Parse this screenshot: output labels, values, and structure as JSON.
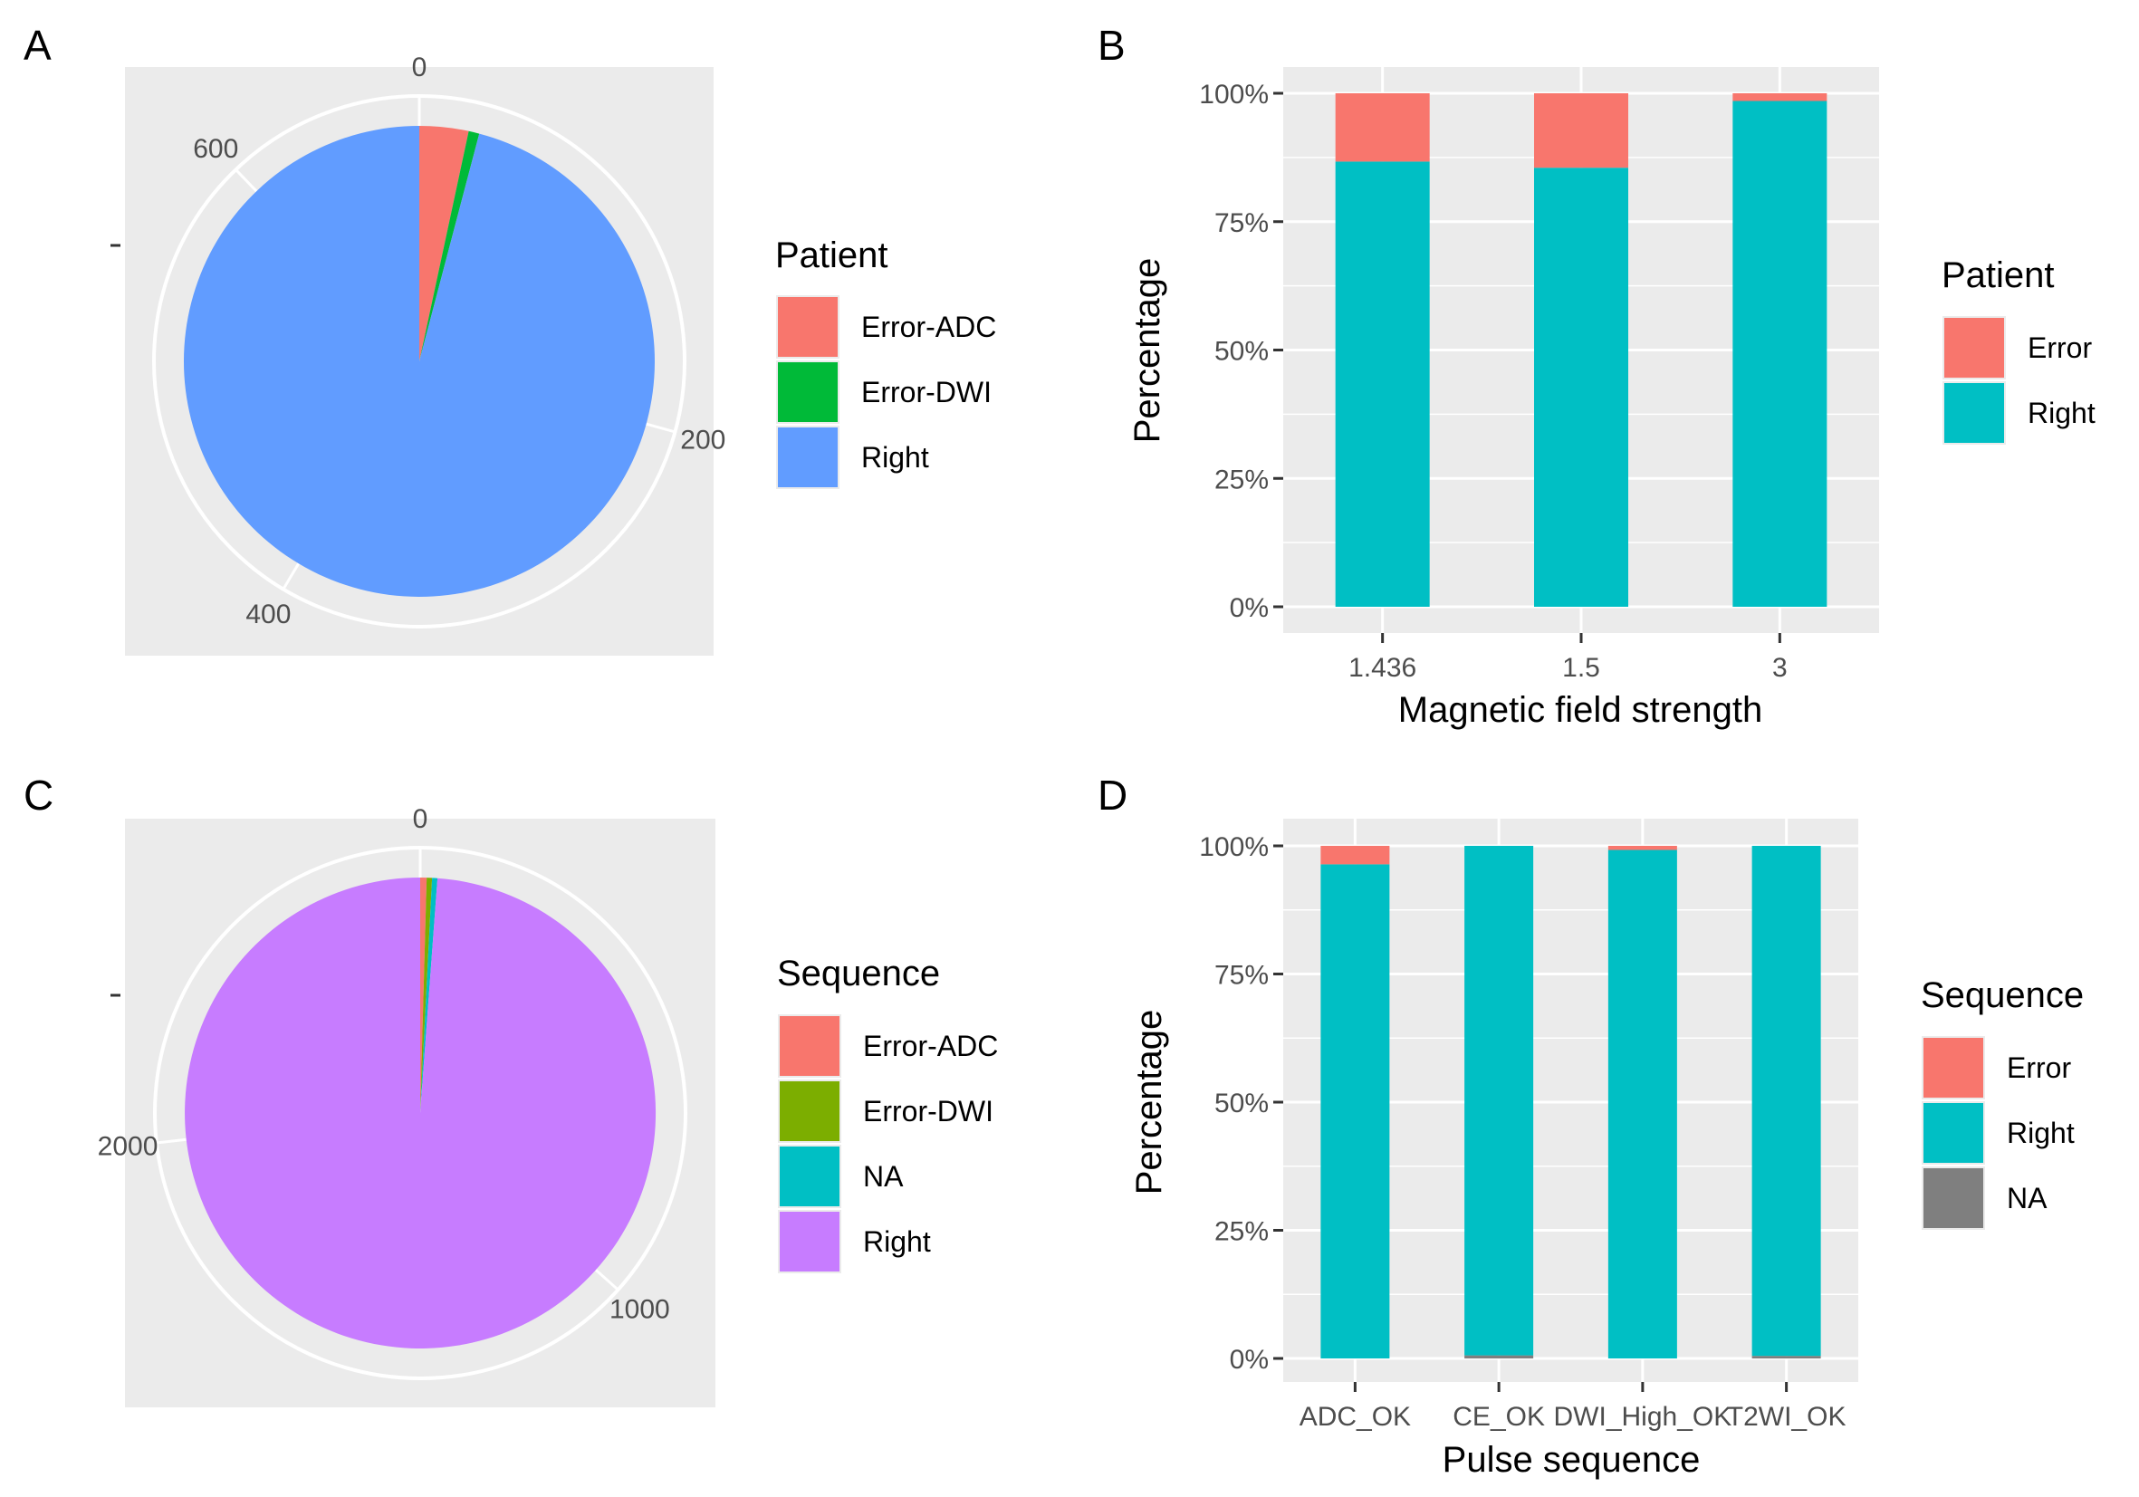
{
  "colors": {
    "panel_bg": "#ebebeb",
    "grid": "#ffffff",
    "tick_text": "#4d4d4d",
    "tick_mark": "#333333",
    "red": "#f8766d",
    "green_a": "#00ba38",
    "blue_a": "#619cff",
    "green_c": "#7cae00",
    "teal": "#00bfc4",
    "purple": "#c77cff",
    "grey": "#7f7f7f"
  },
  "chart_data": [
    {
      "id": "A",
      "panel_label": "A",
      "type": "pie",
      "title": "",
      "radial_axis_ticks": [
        "0",
        "200",
        "400",
        "600"
      ],
      "radial_max": 683,
      "y_axis_tick_label": "",
      "legend_title": "Patient",
      "slices": [
        {
          "name": "Error-ADC",
          "value": 23,
          "color": "#f8766d"
        },
        {
          "name": "Error-DWI",
          "value": 5,
          "color": "#00ba38"
        },
        {
          "name": "Right",
          "value": 655,
          "color": "#619cff"
        }
      ]
    },
    {
      "id": "B",
      "panel_label": "B",
      "type": "bar",
      "stacked": "percent",
      "xlabel": "Magnetic field strength",
      "ylabel": "Percentage",
      "y_ticks": [
        "0%",
        "25%",
        "50%",
        "75%",
        "100%"
      ],
      "ylim": [
        0,
        100
      ],
      "categories": [
        "1.436",
        "1.5",
        "3"
      ],
      "legend_title": "Patient",
      "series": [
        {
          "name": "Error",
          "color": "#f8766d",
          "values": [
            13.3,
            14.5,
            1.5
          ]
        },
        {
          "name": "Right",
          "color": "#00bfc4",
          "values": [
            86.7,
            85.5,
            98.5
          ]
        }
      ]
    },
    {
      "id": "C",
      "panel_label": "C",
      "type": "pie",
      "title": "",
      "radial_axis_ticks": [
        "0",
        "1000",
        "2000"
      ],
      "radial_max": 2732,
      "y_axis_tick_label": "",
      "legend_title": "Sequence",
      "slices": [
        {
          "name": "Error-ADC",
          "value": 12,
          "color": "#f8766d"
        },
        {
          "name": "Error-DWI",
          "value": 10,
          "color": "#7cae00"
        },
        {
          "name": "NA",
          "value": 10,
          "color": "#00bfc4"
        },
        {
          "name": "Right",
          "value": 2700,
          "color": "#c77cff"
        }
      ]
    },
    {
      "id": "D",
      "panel_label": "D",
      "type": "bar",
      "stacked": "percent",
      "xlabel": "Pulse sequence",
      "ylabel": "Percentage",
      "y_ticks": [
        "0%",
        "25%",
        "50%",
        "75%",
        "100%"
      ],
      "ylim": [
        0,
        100
      ],
      "categories": [
        "ADC_OK",
        "CE_OK",
        "DWI_High_OK",
        "T2WI_OK"
      ],
      "legend_title": "Sequence",
      "series": [
        {
          "name": "Error",
          "color": "#f8766d",
          "values": [
            3.6,
            0,
            0.8,
            0
          ]
        },
        {
          "name": "Right",
          "color": "#00bfc4",
          "values": [
            96.4,
            99.4,
            99.2,
            99.5
          ]
        },
        {
          "name": "NA",
          "color": "#7f7f7f",
          "values": [
            0,
            0.6,
            0,
            0.5
          ]
        }
      ]
    }
  ]
}
